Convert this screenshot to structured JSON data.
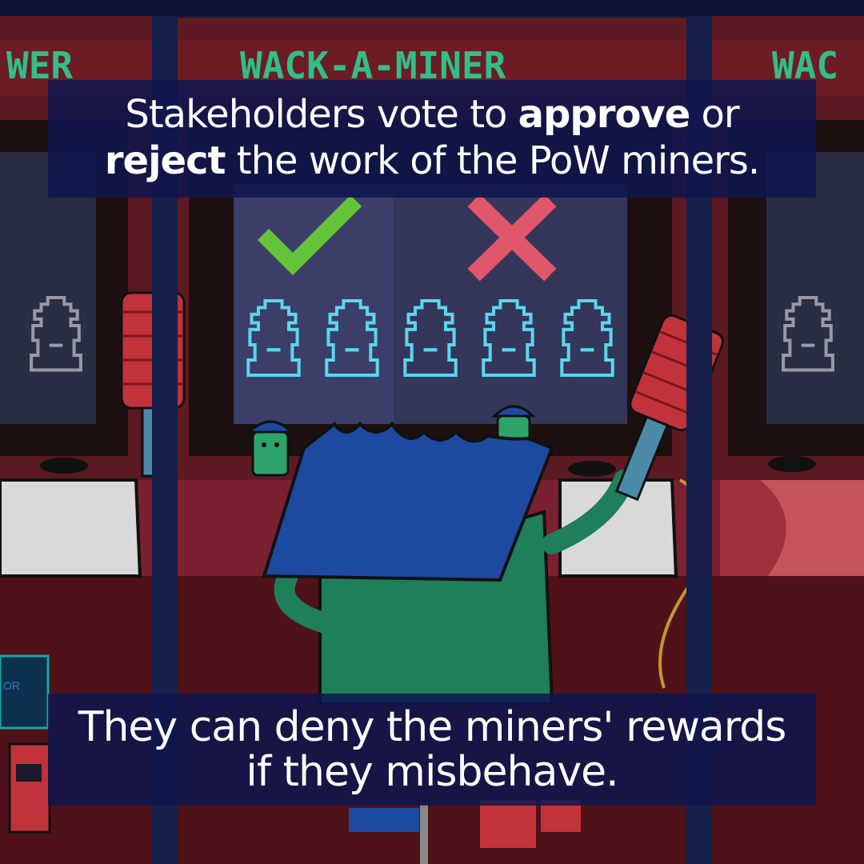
{
  "arcade": {
    "marquee_center": "WACK-A-MINER",
    "marquee_left": "WER",
    "marquee_right": "WAC",
    "side_panel_text": "OR"
  },
  "vote": {
    "approve_icon": "check-icon",
    "reject_icon": "cross-icon",
    "approve_color": "#66c43a",
    "reject_color": "#e0566a",
    "miner_count": 5,
    "miner_color": "#5cd6ee"
  },
  "caption_top": {
    "pre": "Stakeholders vote to ",
    "approve": "approve",
    "mid": " or",
    "reject": "reject",
    "post": " the work of the PoW miners."
  },
  "caption_bottom": {
    "line1": "They can deny the miners' rewards",
    "line2": "if they misbehave."
  },
  "colors": {
    "cabinet_red": "#6e1c24",
    "ticket_blue": "#1d4aa0",
    "character_green": "#1f7f5a"
  }
}
